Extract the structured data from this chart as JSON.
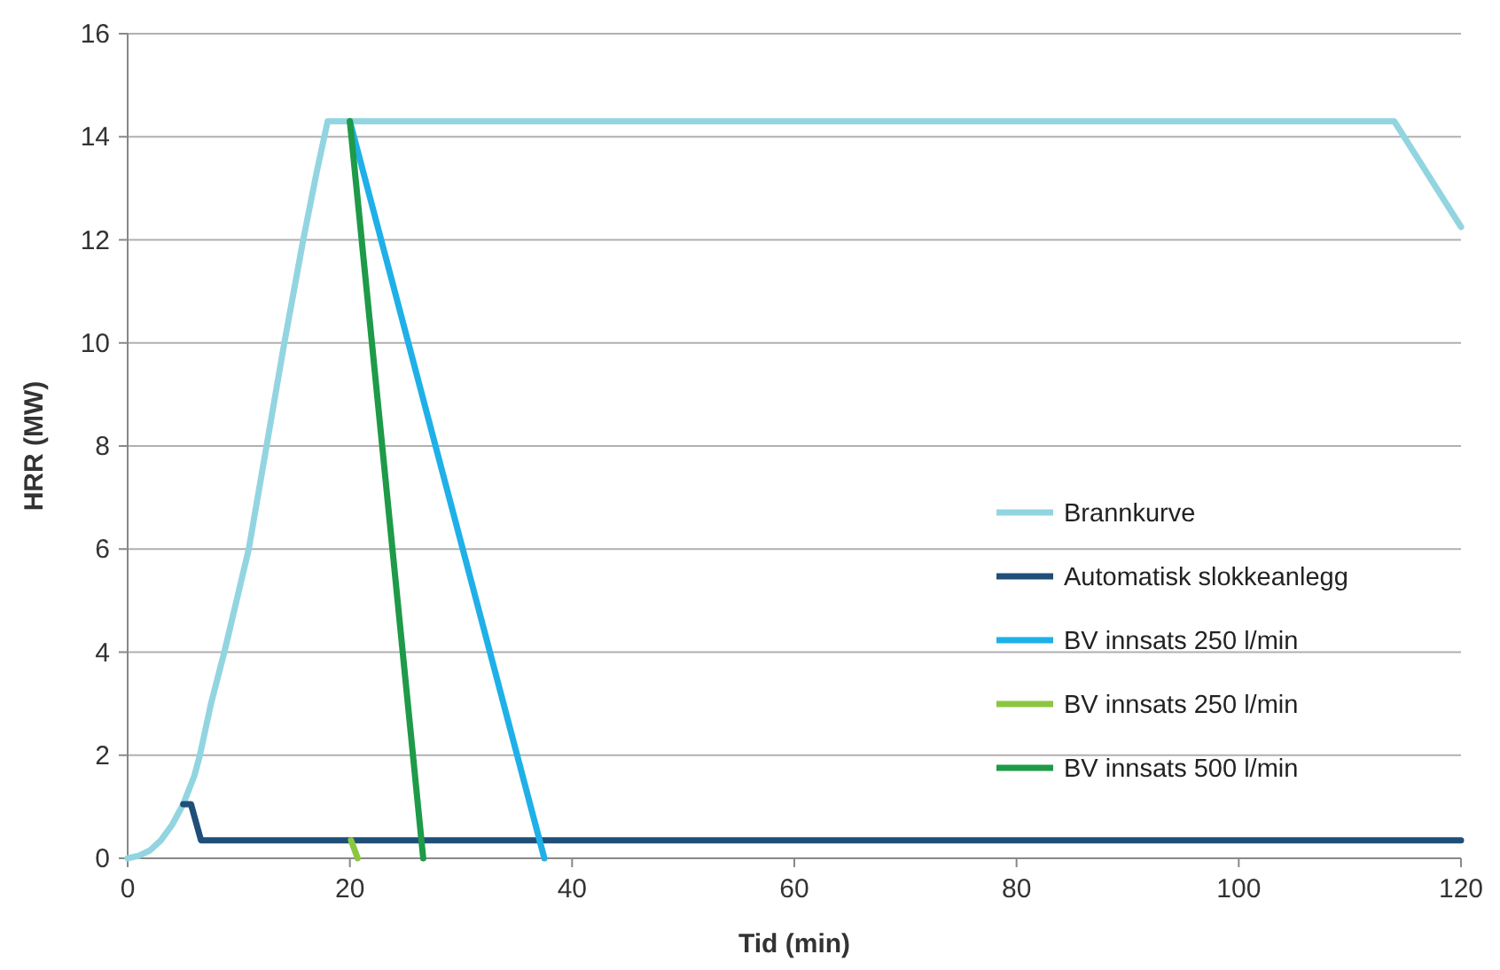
{
  "chart_data": {
    "type": "line",
    "xlabel": "Tid (min)",
    "ylabel": "HRR (MW)",
    "xlim": [
      0,
      120
    ],
    "ylim": [
      0,
      16
    ],
    "xticks": [
      0,
      20,
      40,
      60,
      80,
      100,
      120
    ],
    "yticks": [
      0,
      2,
      4,
      6,
      8,
      10,
      12,
      14,
      16
    ],
    "grid": "y",
    "legend": "bottom right",
    "marker": "none",
    "line_style": "solid",
    "series": [
      {
        "name": "Brannkurve",
        "color": "#92d5e0",
        "x": [
          0,
          1,
          2,
          3,
          4,
          5,
          6,
          6.5,
          7.5,
          8.7,
          9.8,
          10.9,
          12.5,
          14.1,
          15.8,
          17,
          18,
          114,
          120
        ],
        "values": [
          0,
          0.05,
          0.15,
          0.35,
          0.65,
          1.05,
          1.6,
          2,
          3,
          4,
          5,
          6,
          8,
          10,
          12,
          13.3,
          14.3,
          14.3,
          12.25
        ]
      },
      {
        "name": "Automatisk slokkeanlegg",
        "color": "#1f4e79",
        "x": [
          5,
          5.7,
          6.6,
          120
        ],
        "values": [
          1.05,
          1.05,
          0.35,
          0.35
        ]
      },
      {
        "name": "BV innsats 250 l/min",
        "color": "#1fb0e8",
        "x": [
          20,
          37.5
        ],
        "values": [
          14.3,
          0
        ]
      },
      {
        "name": "BV innsats 250 l/min",
        "color": "#8cc63f",
        "x": [
          20.1,
          20.7
        ],
        "values": [
          0.35,
          0
        ]
      },
      {
        "name": "BV innsats 500 l/min",
        "color": "#1e9a48",
        "x": [
          20,
          26.6
        ],
        "values": [
          14.3,
          0
        ]
      }
    ]
  }
}
